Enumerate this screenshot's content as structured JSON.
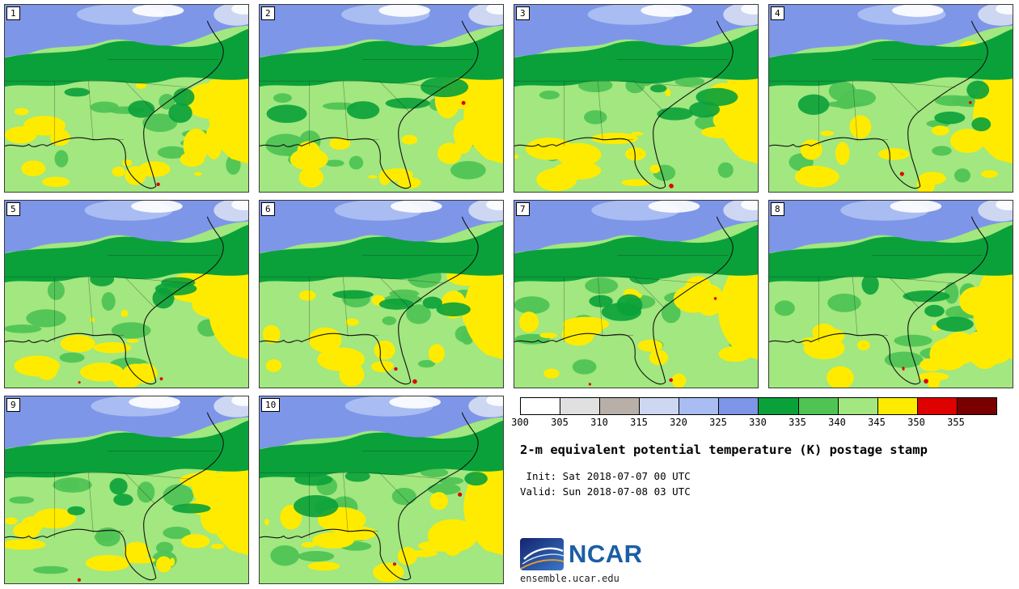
{
  "chart_data": {
    "type": "heatmap",
    "title": "2-m equivalent potential temperature (K) postage stamp",
    "init_line": "Init: Sat 2018-07-07 00 UTC",
    "valid_line": "Valid: Sun 2018-07-08 03 UTC",
    "ensemble_members": [
      "1",
      "2",
      "3",
      "4",
      "5",
      "6",
      "7",
      "8",
      "9",
      "10"
    ],
    "colorbar": {
      "units": "K",
      "ticks": [
        300,
        305,
        310,
        315,
        320,
        325,
        330,
        335,
        340,
        345,
        350,
        355
      ],
      "colors": [
        "#ffffff",
        "#e0e0e0",
        "#b8b0a8",
        "#cdd7f2",
        "#a9bdf2",
        "#7e96e8",
        "#0aa13a",
        "#4fc455",
        "#a2e77f",
        "#ffeb00",
        "#df0000",
        "#7a0000"
      ]
    }
  },
  "footer": {
    "logo_text": "NCAR",
    "url": "ensemble.ucar.edu"
  }
}
